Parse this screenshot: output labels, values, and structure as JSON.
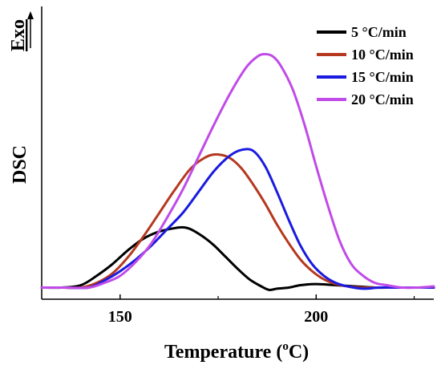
{
  "chart_data": {
    "type": "line",
    "xlabel": "Temperature (°C)",
    "xlabel_main": "Temperature (",
    "xlabel_sup": "o",
    "xlabel_end": "C)",
    "ylabel": "DSC",
    "exo_label": "Exo",
    "xlim": [
      130,
      230
    ],
    "ylim": [
      -0.05,
      1.05
    ],
    "x_ticks": [
      150,
      200
    ],
    "x_tick_labels": [
      "150",
      "200"
    ],
    "y_ticks_shown": false,
    "legend_position": "top-right",
    "series": [
      {
        "name": "5 °C/min",
        "color": "#000000",
        "x": [
          130,
          135,
          140,
          144,
          148,
          152,
          156,
          160,
          164,
          166,
          168,
          171,
          174,
          177,
          180,
          183,
          186,
          188,
          190,
          193,
          196,
          200,
          205,
          210,
          215,
          220,
          225,
          230
        ],
        "y": [
          0.0,
          0.0,
          0.01,
          0.05,
          0.1,
          0.16,
          0.21,
          0.24,
          0.255,
          0.258,
          0.25,
          0.22,
          0.18,
          0.13,
          0.08,
          0.035,
          0.005,
          -0.01,
          -0.005,
          0.0,
          0.01,
          0.015,
          0.01,
          0.005,
          0.0,
          0.0,
          0.0,
          0.0
        ]
      },
      {
        "name": "10 °C/min",
        "color": "#b5381e",
        "x": [
          130,
          135,
          140,
          144,
          148,
          152,
          156,
          160,
          164,
          168,
          172,
          175,
          178,
          181,
          184,
          187,
          190,
          193,
          196,
          199,
          202,
          205,
          208,
          212,
          216,
          220,
          225,
          230
        ],
        "y": [
          0.0,
          0.0,
          0.0,
          0.02,
          0.06,
          0.13,
          0.22,
          0.32,
          0.42,
          0.51,
          0.56,
          0.57,
          0.555,
          0.51,
          0.44,
          0.36,
          0.27,
          0.19,
          0.12,
          0.07,
          0.035,
          0.015,
          0.005,
          0.0,
          0.0,
          0.0,
          0.0,
          0.0
        ]
      },
      {
        "name": "15 °C/min",
        "color": "#1a1ae0",
        "x": [
          130,
          136,
          142,
          146,
          150,
          154,
          158,
          162,
          166,
          170,
          174,
          178,
          181,
          184,
          187,
          190,
          193,
          196,
          199,
          202,
          205,
          208,
          212,
          216,
          220,
          225,
          230
        ],
        "y": [
          0.0,
          0.0,
          0.0,
          0.03,
          0.07,
          0.12,
          0.18,
          0.25,
          0.32,
          0.41,
          0.5,
          0.565,
          0.59,
          0.585,
          0.52,
          0.41,
          0.29,
          0.18,
          0.1,
          0.05,
          0.02,
          0.005,
          -0.005,
          0.0,
          0.0,
          0.0,
          0.0
        ]
      },
      {
        "name": "20 °C/min",
        "color": "#c04be8",
        "x": [
          130,
          136,
          142,
          146,
          150,
          154,
          158,
          162,
          166,
          170,
          174,
          178,
          182,
          185,
          187,
          189,
          191,
          194,
          197,
          200,
          203,
          206,
          209,
          212,
          215,
          218,
          222,
          226,
          230
        ],
        "y": [
          0.0,
          0.0,
          0.0,
          0.02,
          0.05,
          0.11,
          0.19,
          0.3,
          0.42,
          0.56,
          0.7,
          0.83,
          0.94,
          0.99,
          1.0,
          0.99,
          0.95,
          0.85,
          0.7,
          0.52,
          0.35,
          0.2,
          0.1,
          0.05,
          0.02,
          0.01,
          0.0,
          0.0,
          0.005
        ]
      }
    ]
  }
}
